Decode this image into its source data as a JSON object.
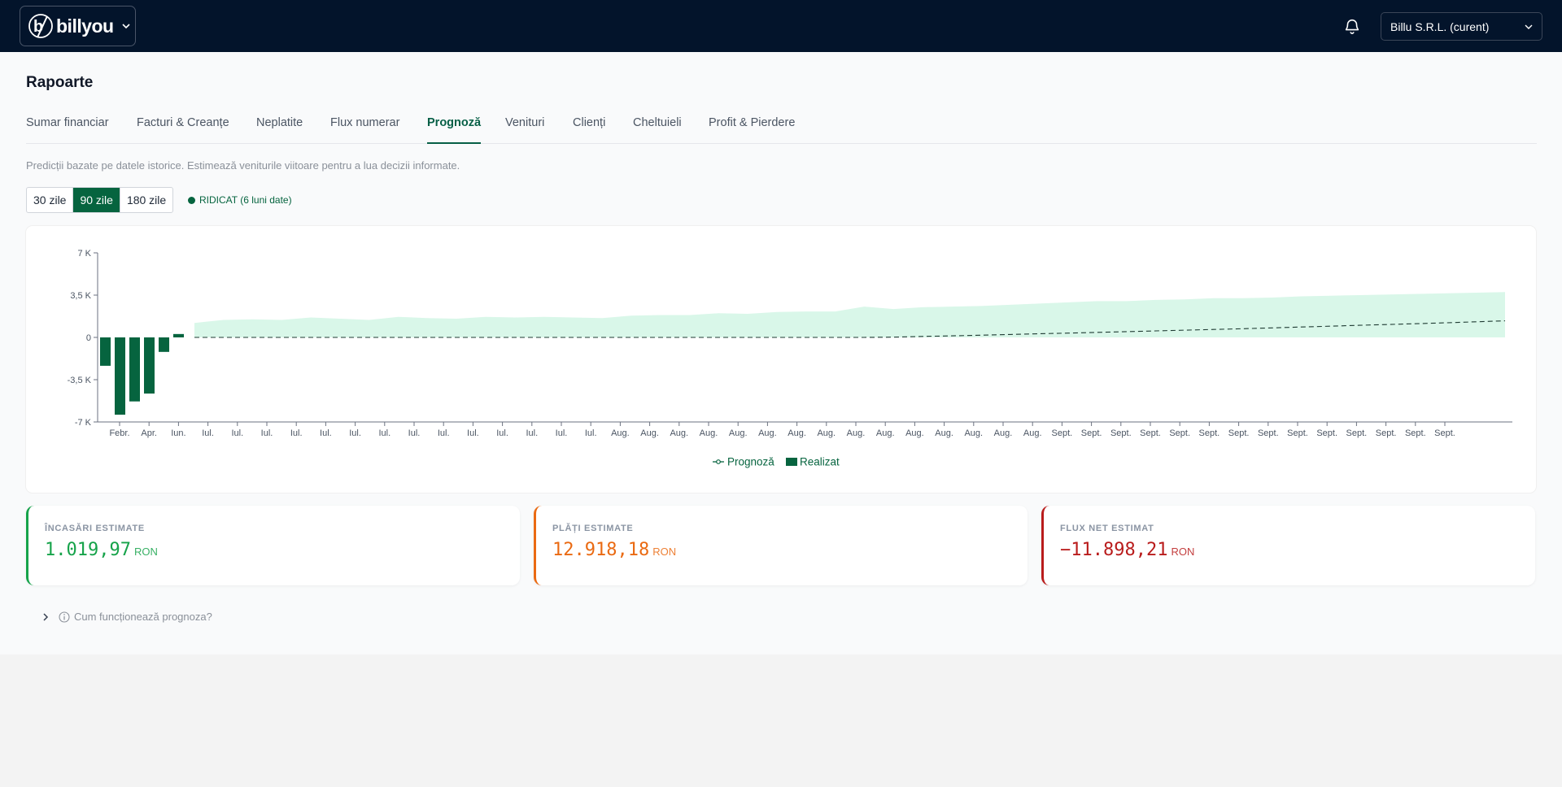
{
  "header": {
    "logo_text": "billyou",
    "company": "Billu S.R.L. (curent)"
  },
  "page": {
    "title": "Rapoarte",
    "tabs": [
      {
        "label": "Sumar financiar",
        "active": false
      },
      {
        "label": "Facturi & Creanțe",
        "active": false
      },
      {
        "label": "Neplatite",
        "active": false
      },
      {
        "label": "Flux numerar",
        "active": false
      },
      {
        "label": "Prognoză",
        "active": true
      },
      {
        "label": "Venituri",
        "active": false
      },
      {
        "label": "Clienți",
        "active": false
      },
      {
        "label": "Cheltuieli",
        "active": false
      },
      {
        "label": "Profit & Pierdere",
        "active": false
      }
    ],
    "description": "Predicții bazate pe datele istorice. Estimează veniturile viitoare pentru a lua decizii informate.",
    "ranges": [
      {
        "label": "30 zile",
        "active": false
      },
      {
        "label": "90 zile",
        "active": true
      },
      {
        "label": "180 zile",
        "active": false
      }
    ],
    "confidence": "RIDICAT (6 luni date)"
  },
  "colors": {
    "accent": "#06643f",
    "band": "#d9f7e9",
    "income": "#16a34a",
    "payments": "#ea6a12",
    "net": "#b91c1c"
  },
  "chart_data": {
    "type": "bar",
    "y_ticks": [
      "7 K",
      "3,5 K",
      "0",
      "-3,5 K",
      "-7 K"
    ],
    "ylim": [
      -7000,
      7000
    ],
    "x_ticks": [
      "Febr.",
      "Apr.",
      "Iun.",
      "Iul.",
      "Iul.",
      "Iul.",
      "Iul.",
      "Iul.",
      "Iul.",
      "Iul.",
      "Iul.",
      "Iul.",
      "Iul.",
      "Iul.",
      "Iul.",
      "Iul.",
      "Iul.",
      "Aug.",
      "Aug.",
      "Aug.",
      "Aug.",
      "Aug.",
      "Aug.",
      "Aug.",
      "Aug.",
      "Aug.",
      "Aug.",
      "Aug.",
      "Aug.",
      "Aug.",
      "Aug.",
      "Aug.",
      "Sept.",
      "Sept.",
      "Sept.",
      "Sept.",
      "Sept.",
      "Sept.",
      "Sept.",
      "Sept.",
      "Sept.",
      "Sept.",
      "Sept.",
      "Sept.",
      "Sept.",
      "Sept."
    ],
    "legend": [
      "Prognoză",
      "Realizat"
    ],
    "legend_position": "bottom",
    "realizat": [
      -2350,
      -6400,
      -5300,
      -4650,
      -1200,
      280
    ],
    "band_upper": [
      1200,
      1450,
      1500,
      1450,
      1650,
      1550,
      1450,
      1700,
      1600,
      1550,
      1700,
      1650,
      1700,
      1650,
      1600,
      1800,
      1850,
      1850,
      2000,
      1950,
      2100,
      2150,
      2150,
      2550,
      2350,
      2500,
      2550,
      2600,
      2700,
      2800,
      2900,
      3000,
      3000,
      3100,
      3150,
      3250,
      3250,
      3300,
      3400,
      3450,
      3500,
      3550,
      3600,
      3650,
      3700,
      3750
    ],
    "prognoza": [
      0,
      0,
      0,
      0,
      0,
      0,
      0,
      0,
      0,
      0,
      0,
      0,
      0,
      0,
      0,
      0,
      0,
      0,
      0,
      0,
      0,
      0,
      0,
      0,
      20,
      80,
      130,
      180,
      240,
      300,
      360,
      420,
      480,
      540,
      600,
      660,
      720,
      790,
      860,
      930,
      1000,
      1070,
      1140,
      1210,
      1290,
      1370
    ],
    "grid": false
  },
  "stats": [
    {
      "label": "ÎNCASĂRI ESTIMATE",
      "value": "1.019,97",
      "unit": "RON"
    },
    {
      "label": "PLĂȚI ESTIMATE",
      "value": "12.918,18",
      "unit": "RON"
    },
    {
      "label": "FLUX NET ESTIMAT",
      "value": "−11.898,21",
      "unit": "RON"
    }
  ],
  "help": {
    "label": "Cum funcționează prognoza?"
  }
}
